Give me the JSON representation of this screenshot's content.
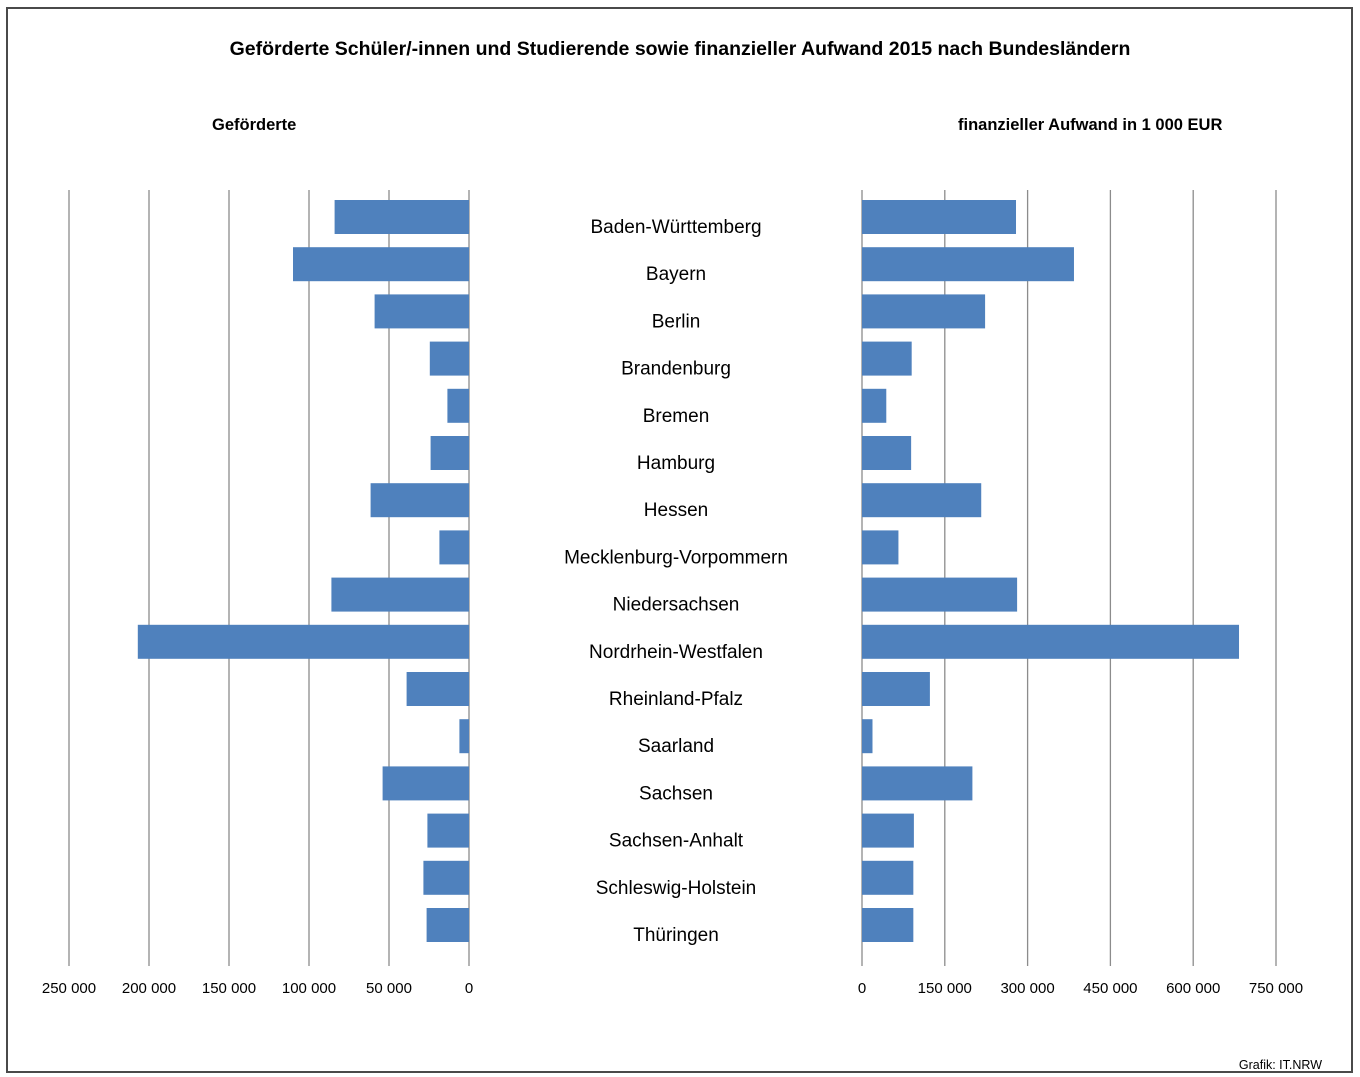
{
  "title": "Geförderte Schüler/-innen und Studierende sowie finanzieller Aufwand 2015 nach Bundesländern",
  "left_label": "Geförderte",
  "right_label": "finanzieller Aufwand in 1 000 EUR",
  "source": "Grafik: IT.NRW",
  "colors": {
    "bar": "#4f81bd",
    "grid": "#8c8c8c"
  },
  "chart_data": [
    {
      "type": "bar",
      "orientation": "horizontal",
      "direction": "reversed",
      "title": "Geförderte",
      "categories": [
        "Baden-Württemberg",
        "Bayern",
        "Berlin",
        "Brandenburg",
        "Bremen",
        "Hamburg",
        "Hessen",
        "Mecklenburg-Vorpommern",
        "Niedersachsen",
        "Nordrhein-Westfalen",
        "Rheinland-Pfalz",
        "Saarland",
        "Sachsen",
        "Sachsen-Anhalt",
        "Schleswig-Holstein",
        "Thüringen"
      ],
      "values": [
        84000,
        110000,
        59000,
        24500,
        13500,
        24000,
        61500,
        18500,
        86000,
        207000,
        39000,
        6000,
        54000,
        26000,
        28500,
        26500
      ],
      "xlim": [
        0,
        250000
      ],
      "ticks": [
        0,
        50000,
        100000,
        150000,
        200000,
        250000
      ],
      "tick_labels": [
        "0",
        "50 000",
        "100 000",
        "150 000",
        "200 000",
        "250 000"
      ],
      "grid": true
    },
    {
      "type": "bar",
      "orientation": "horizontal",
      "title": "finanzieller Aufwand in 1 000 EUR",
      "categories": [
        "Baden-Württemberg",
        "Bayern",
        "Berlin",
        "Brandenburg",
        "Bremen",
        "Hamburg",
        "Hessen",
        "Mecklenburg-Vorpommern",
        "Niedersachsen",
        "Nordrhein-Westfalen",
        "Rheinland-Pfalz",
        "Saarland",
        "Sachsen",
        "Sachsen-Anhalt",
        "Schleswig-Holstein",
        "Thüringen"
      ],
      "values": [
        279000,
        384000,
        223000,
        90000,
        44000,
        89000,
        216000,
        66000,
        281000,
        683000,
        123000,
        19000,
        200000,
        94000,
        93000,
        93000
      ],
      "xlim": [
        0,
        750000
      ],
      "ticks": [
        0,
        150000,
        300000,
        450000,
        600000,
        750000
      ],
      "tick_labels": [
        "0",
        "150 000",
        "300 000",
        "450 000",
        "600 000",
        "750 000"
      ],
      "grid": true
    }
  ]
}
